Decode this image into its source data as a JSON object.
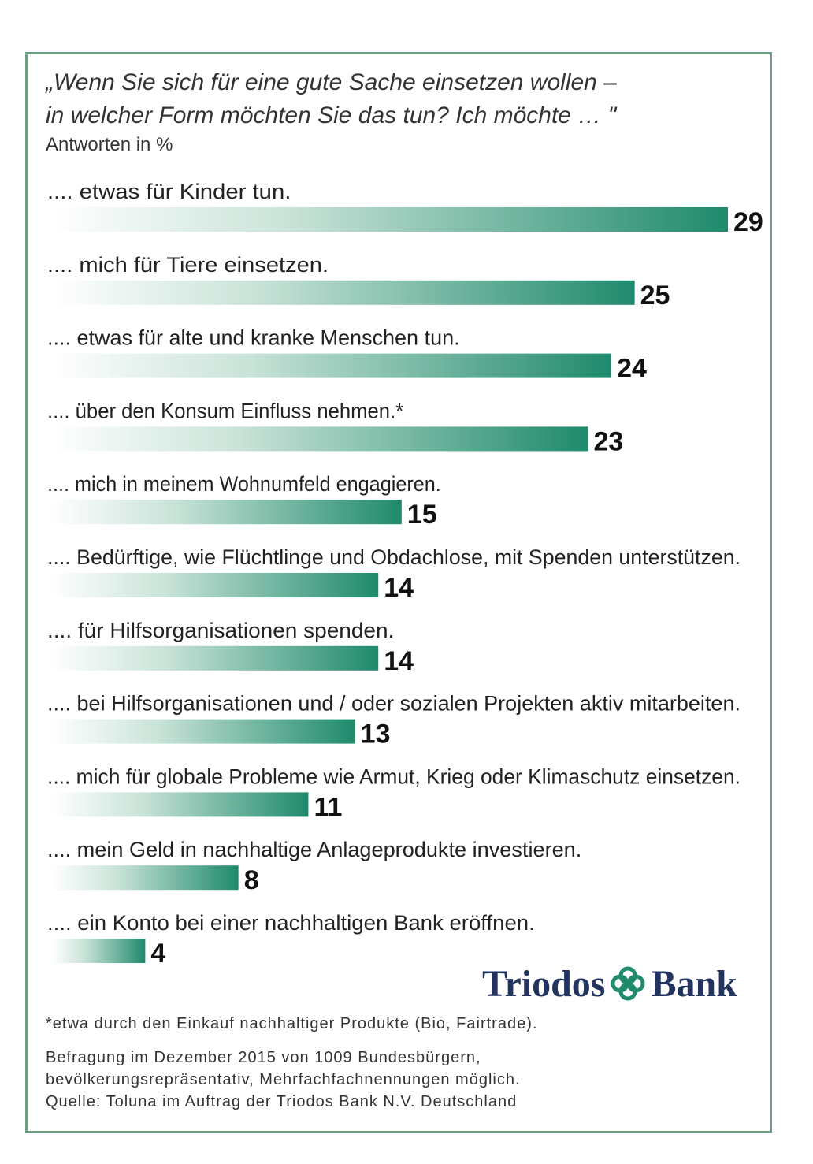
{
  "chart_data": {
    "type": "bar",
    "orientation": "horizontal",
    "title_line1": "„Wenn Sie sich für eine gute Sache einsetzen wollen –",
    "title_line2": "in welcher Form möchten Sie das tun? Ich möchte … \"",
    "subtitle": "Antworten in %",
    "categories": [
      ".... etwas für Kinder tun.",
      ".... mich für Tiere einsetzen.",
      ".... etwas für alte und kranke Menschen tun.",
      ".... über den Konsum Einfluss nehmen.*",
      ".... mich in meinem Wohnumfeld engagieren.",
      ".... Bedürftige, wie Flüchtlinge und Obdachlose, mit Spenden unterstützen.",
      ".... für Hilfsorganisationen spenden.",
      ".... bei Hilfsorganisationen und / oder sozialen Projekten aktiv mitarbeiten.",
      ".... mich für globale Probleme wie Armut, Krieg oder Klimaschutz einsetzen.",
      ".... mein Geld in nachhaltige Anlageprodukte investieren.",
      ".... ein Konto bei einer nachhaltigen Bank eröffnen."
    ],
    "values": [
      29,
      25,
      24,
      23,
      15,
      14,
      14,
      13,
      11,
      8,
      4
    ],
    "xlim": [
      0,
      29
    ],
    "grid": false,
    "bar_color_start": "#ffffff",
    "bar_color_end": "#1f8a6c"
  },
  "logo": {
    "left": "Triodos",
    "right": "Bank",
    "color": "#23355f",
    "emblem_color": "#1f8a6c"
  },
  "footnote": "*etwa durch den Einkauf nachhaltiger Produkte (Bio, Fairtrade).",
  "source": {
    "line1": "Befragung im Dezember 2015 von 1009 Bundesbürgern,",
    "line2": "bevölkerungsrepräsentativ, Mehrfachfachnennungen möglich.",
    "line3": "Quelle: Toluna im Auftrag der Triodos Bank N.V. Deutschland"
  },
  "frame_color": "#6f9e85"
}
